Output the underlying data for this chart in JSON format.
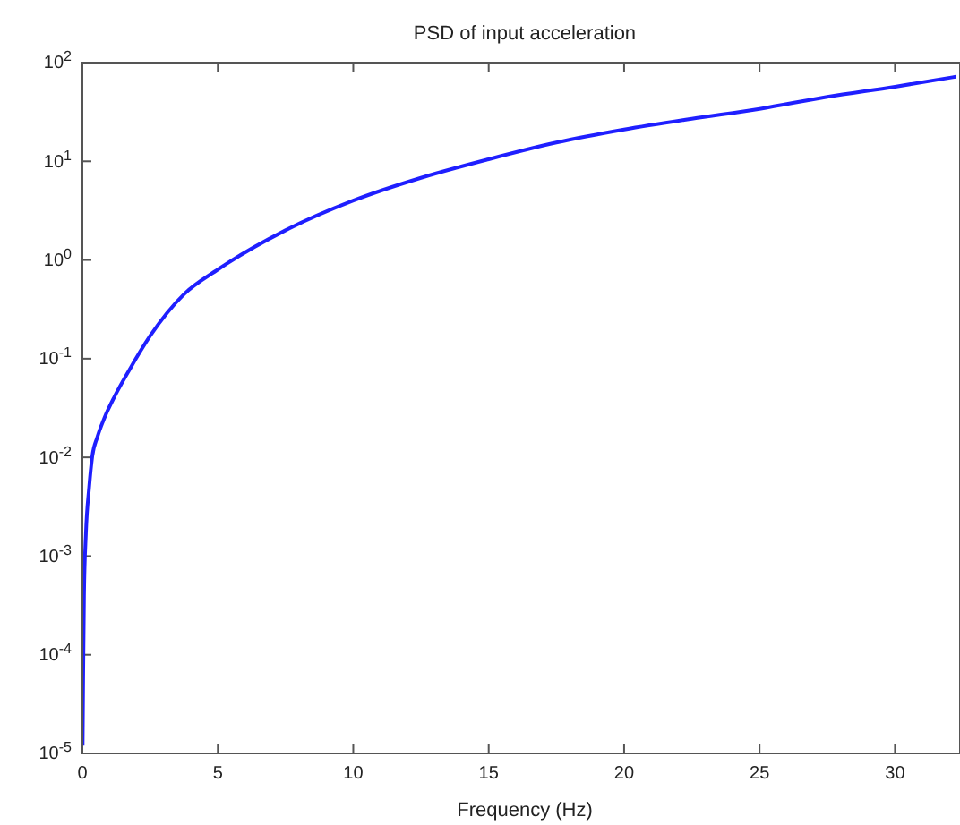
{
  "chart_data": {
    "type": "line",
    "title": "PSD of input acceleration",
    "xlabel": "Frequency (Hz)",
    "log": "y",
    "xlim": [
      0,
      32.4
    ],
    "ylim": [
      1e-05,
      100
    ],
    "xticks": [
      0,
      5,
      10,
      15,
      20,
      25,
      30
    ],
    "yticks": [
      {
        "value": 1e-05,
        "label": "10$^{-5}$"
      },
      {
        "value": 0.0001,
        "label": "10$^{-4}$"
      },
      {
        "value": 0.001,
        "label": "10$^{-3}$"
      },
      {
        "value": 0.01,
        "label": "10$^{-2}$"
      },
      {
        "value": 0.1,
        "label": "10$^{-1}$"
      },
      {
        "value": 1,
        "label": "10$^{0}$"
      },
      {
        "value": 10,
        "label": "10$^{1}$"
      },
      {
        "value": 100,
        "label": "10$^{2}$"
      }
    ],
    "grid": false,
    "marker": "none",
    "line_style": "solid",
    "series": [
      {
        "color": "#1f1fff",
        "x": [
          0.01,
          0.03,
          0.06,
          0.13,
          0.25,
          0.36,
          0.55,
          0.81,
          1.2,
          1.71,
          2.5,
          3.75,
          5,
          7.5,
          10,
          12.5,
          15,
          17.5,
          20,
          22.5,
          25,
          27.5,
          30,
          32.25
        ],
        "values": [
          1.2e-05,
          6e-05,
          0.0004,
          0.0017,
          0.005,
          0.01,
          0.016,
          0.025,
          0.042,
          0.075,
          0.17,
          0.45,
          0.8,
          2.0,
          4,
          6.8,
          10.5,
          15.5,
          21,
          27,
          34,
          45,
          57,
          72
        ]
      }
    ]
  }
}
